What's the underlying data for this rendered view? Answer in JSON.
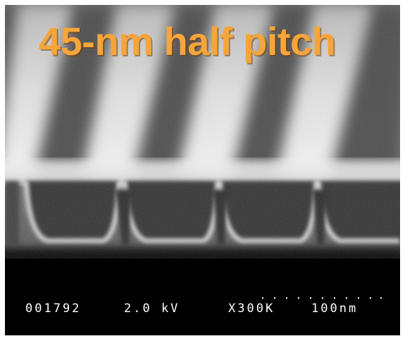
{
  "image": {
    "title": "45-nm half pitch",
    "title_color": "#f5a53a",
    "info_bar": {
      "frame_number": "001792",
      "voltage": "2.0 kV",
      "magnification": "X300K",
      "scale": "100nm"
    }
  }
}
